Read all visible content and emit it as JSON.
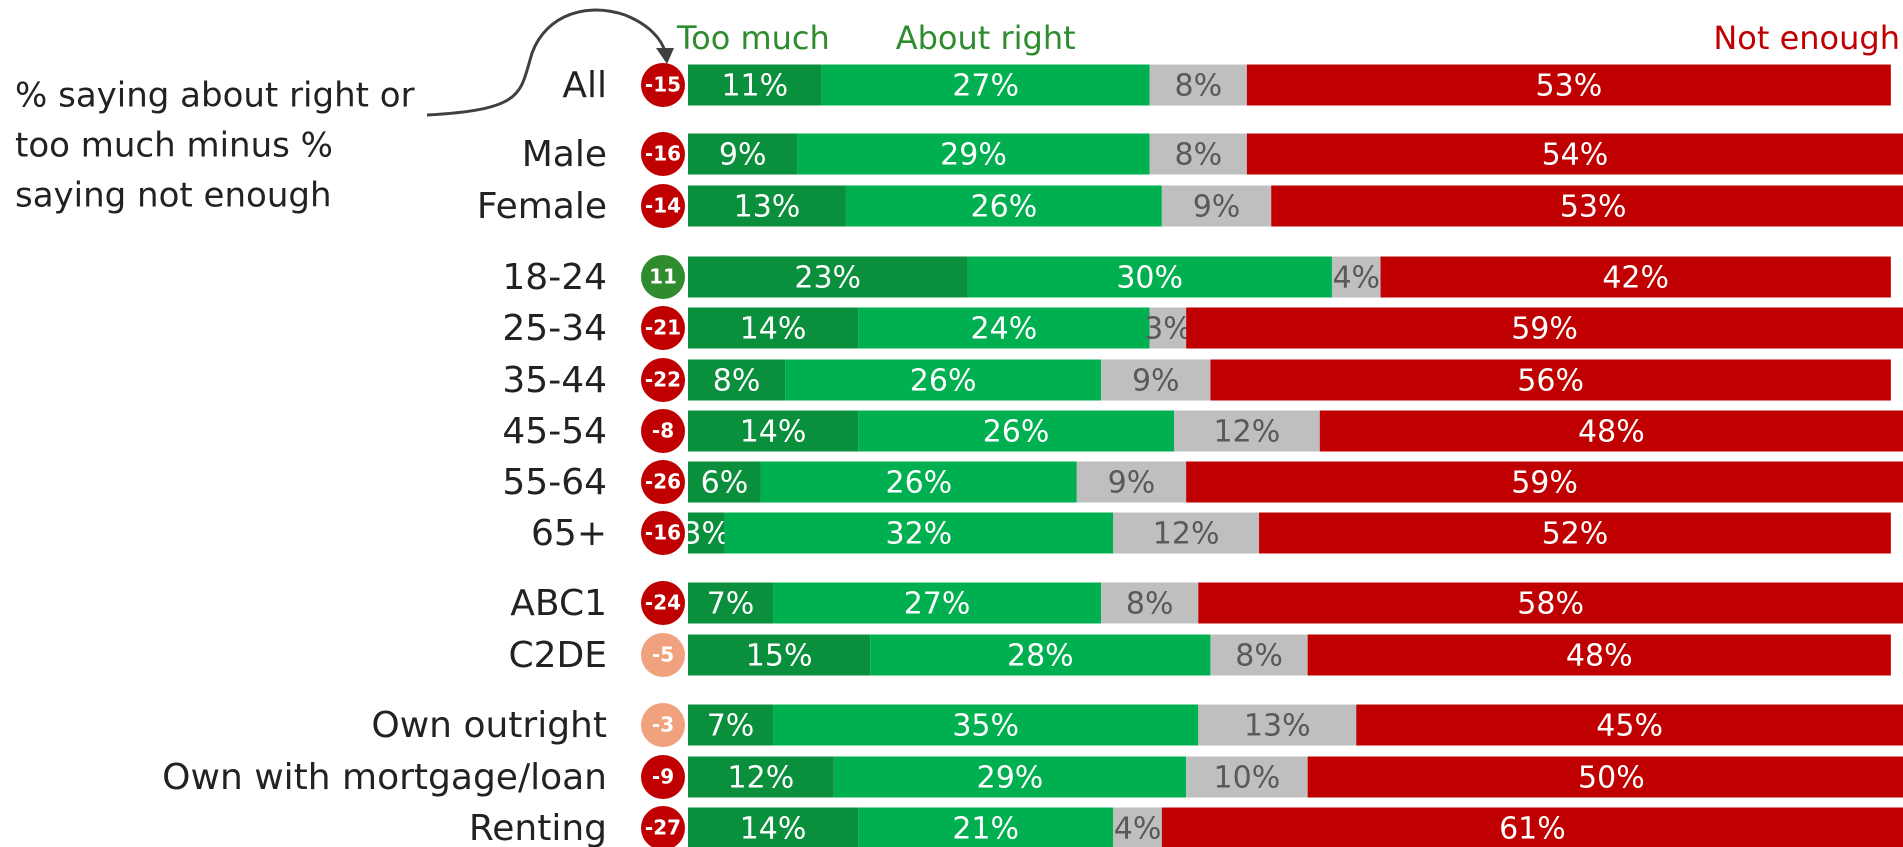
{
  "chart_data": {
    "type": "stacked_bar",
    "annotation": [
      "% saying about right or",
      "too much minus %",
      "saying not enough"
    ],
    "categories": [
      "All",
      "Male",
      "Female",
      "18-24",
      "25-34",
      "35-44",
      "45-54",
      "55-64",
      "65+",
      "ABC1",
      "C2DE",
      "Own outright",
      "Own with mortgage/loan",
      "Renting"
    ],
    "net": [
      -15,
      -16,
      -14,
      11,
      -21,
      -22,
      -8,
      -26,
      -16,
      -24,
      -5,
      -3,
      -9,
      -27
    ],
    "net_colors": [
      "#c00000",
      "#c00000",
      "#c00000",
      "#2e8b2e",
      "#c00000",
      "#c00000",
      "#c00000",
      "#c00000",
      "#c00000",
      "#c00000",
      "#f0a27e",
      "#f0a27e",
      "#c00000",
      "#c00000"
    ],
    "xlim": [
      0,
      100
    ],
    "series": [
      {
        "name": "Too much",
        "color": "#0a8f3c",
        "label_color": "#2e8b2e",
        "values": [
          11,
          9,
          13,
          23,
          14,
          8,
          14,
          6,
          3,
          7,
          15,
          7,
          12,
          14
        ],
        "value_labels": [
          "11%",
          "9%",
          "13%",
          "23%",
          "14%",
          "8%",
          "14%",
          "6%",
          "3%",
          "7%",
          "15%",
          "7%",
          "12%",
          "14%"
        ]
      },
      {
        "name": "About right",
        "color": "#00b050",
        "label_color": "#2e8b2e",
        "values": [
          27,
          29,
          26,
          30,
          24,
          26,
          26,
          26,
          32,
          27,
          28,
          35,
          29,
          21
        ],
        "value_labels": [
          "27%",
          "29%",
          "26%",
          "30%",
          "24%",
          "26%",
          "26%",
          "26%",
          "32%",
          "27%",
          "28%",
          "35%",
          "29%",
          "21%"
        ]
      },
      {
        "color": "#bfbfbf",
        "values": [
          8,
          8,
          9,
          4,
          3,
          9,
          12,
          9,
          12,
          8,
          8,
          13,
          10,
          4
        ],
        "value_labels": [
          "8%",
          "8%",
          "9%",
          "4%",
          "3%",
          "9%",
          "12%",
          "9%",
          "12%",
          "8%",
          "8%",
          "13%",
          "10%",
          "4%"
        ]
      },
      {
        "name": "Not enough",
        "color": "#c00000",
        "label_color": "#c00000",
        "values": [
          53,
          54,
          53,
          42,
          59,
          56,
          48,
          59,
          52,
          58,
          48,
          45,
          50,
          61
        ],
        "value_labels": [
          "53%",
          "54%",
          "53%",
          "42%",
          "59%",
          "56%",
          "48%",
          "59%",
          "52%",
          "58%",
          "48%",
          "45%",
          "50%",
          "61%"
        ]
      }
    ]
  }
}
